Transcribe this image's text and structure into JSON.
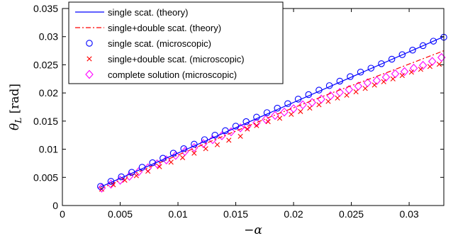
{
  "chart_data": {
    "type": "line",
    "xlabel": "−α",
    "ylabel": "θ_L [rad]",
    "ylabel_main": "θ",
    "ylabel_sub": "L",
    "ylabel_unit": " [rad]",
    "xlim": [
      0,
      0.033
    ],
    "ylim": [
      0,
      0.035
    ],
    "x_ticks": [
      0,
      0.005,
      0.01,
      0.015,
      0.02,
      0.025,
      0.03
    ],
    "x_tick_labels": [
      "0",
      "0.005",
      "0.01",
      "0.015",
      "0.02",
      "0.025",
      "0.03"
    ],
    "y_ticks": [
      0,
      0.005,
      0.01,
      0.015,
      0.02,
      0.025,
      0.03,
      0.035
    ],
    "y_tick_labels": [
      "0",
      "0.005",
      "0.01",
      "0.015",
      "0.02",
      "0.025",
      "0.03",
      "0.035"
    ],
    "grid": false,
    "legend_placement": "top-left",
    "series": [
      {
        "name": "single scat. (theory)",
        "style": "solid-line",
        "color": "#0000ff",
        "x": [
          0.0033,
          0.033
        ],
        "y": [
          0.0033,
          0.03
        ]
      },
      {
        "name": "single+double scat. (theory)",
        "style": "dashdot-line",
        "color": "#ff0000",
        "x": [
          0.0033,
          0.0083,
          0.0133,
          0.0183,
          0.0233,
          0.0283,
          0.033
        ],
        "y": [
          0.003,
          0.0075,
          0.0118,
          0.016,
          0.02,
          0.0238,
          0.0275
        ]
      },
      {
        "name": "single scat. (microscopic)",
        "style": "circle-marker",
        "color": "#0000ff",
        "x": [
          0.0033,
          0.0042,
          0.0051,
          0.006,
          0.0069,
          0.0078,
          0.0087,
          0.0096,
          0.0105,
          0.0114,
          0.0123,
          0.0132,
          0.0141,
          0.015,
          0.0159,
          0.0168,
          0.0177,
          0.0186,
          0.0195,
          0.0204,
          0.0213,
          0.0222,
          0.0231,
          0.024,
          0.0249,
          0.0258,
          0.0267,
          0.0276,
          0.0285,
          0.0294,
          0.0303,
          0.0312,
          0.0321,
          0.033
        ],
        "y": [
          0.0034,
          0.0043,
          0.0051,
          0.0059,
          0.0068,
          0.0076,
          0.0084,
          0.0093,
          0.0101,
          0.0109,
          0.0117,
          0.0125,
          0.0133,
          0.0141,
          0.0149,
          0.0157,
          0.0165,
          0.0173,
          0.0181,
          0.0189,
          0.0197,
          0.0205,
          0.0213,
          0.0221,
          0.0229,
          0.0237,
          0.0244,
          0.0252,
          0.026,
          0.0268,
          0.0276,
          0.0284,
          0.0292,
          0.0299
        ]
      },
      {
        "name": "single+double scat. (microscopic)",
        "style": "x-marker",
        "color": "#ff0000",
        "x": [
          0.0034,
          0.0044,
          0.0054,
          0.0064,
          0.0074,
          0.0084,
          0.0094,
          0.0104,
          0.0114,
          0.0124,
          0.0134,
          0.0144,
          0.0154,
          0.016,
          0.0168,
          0.0178,
          0.0188,
          0.0198,
          0.0206,
          0.0214,
          0.0222,
          0.023,
          0.0238,
          0.0246,
          0.0254,
          0.0262,
          0.027,
          0.0278,
          0.0286,
          0.0294,
          0.0302,
          0.031,
          0.0318,
          0.0326
        ],
        "y": [
          0.0029,
          0.0037,
          0.0045,
          0.0053,
          0.0061,
          0.0069,
          0.0077,
          0.0085,
          0.0093,
          0.0101,
          0.0108,
          0.0116,
          0.0123,
          0.0136,
          0.0142,
          0.0149,
          0.0155,
          0.0162,
          0.0167,
          0.0173,
          0.0179,
          0.0185,
          0.0191,
          0.0196,
          0.0202,
          0.0208,
          0.0214,
          0.022,
          0.0225,
          0.0231,
          0.0237,
          0.0242,
          0.0247,
          0.0251
        ]
      },
      {
        "name": "complete solution (microscopic)",
        "style": "diamond-marker",
        "color": "#ff00ff",
        "x": [
          0.0034,
          0.0042,
          0.005,
          0.0058,
          0.0066,
          0.0074,
          0.0082,
          0.009,
          0.0098,
          0.0106,
          0.0114,
          0.0122,
          0.013,
          0.0138,
          0.0146,
          0.0154,
          0.016,
          0.0168,
          0.0176,
          0.0184,
          0.0192,
          0.02,
          0.0208,
          0.0216,
          0.0224,
          0.0232,
          0.024,
          0.0248,
          0.0256,
          0.0264,
          0.0272,
          0.028,
          0.0288,
          0.0296,
          0.0304,
          0.0312,
          0.032,
          0.0328
        ],
        "y": [
          0.0031,
          0.0038,
          0.0045,
          0.0052,
          0.006,
          0.0067,
          0.0074,
          0.0081,
          0.0089,
          0.0096,
          0.0103,
          0.011,
          0.0117,
          0.0124,
          0.0131,
          0.0138,
          0.0141,
          0.0147,
          0.0153,
          0.016,
          0.0166,
          0.0172,
          0.0179,
          0.0183,
          0.0189,
          0.0195,
          0.0201,
          0.0206,
          0.0212,
          0.0218,
          0.0222,
          0.0228,
          0.0234,
          0.0238,
          0.0244,
          0.0249,
          0.0256,
          0.0263
        ]
      }
    ]
  }
}
